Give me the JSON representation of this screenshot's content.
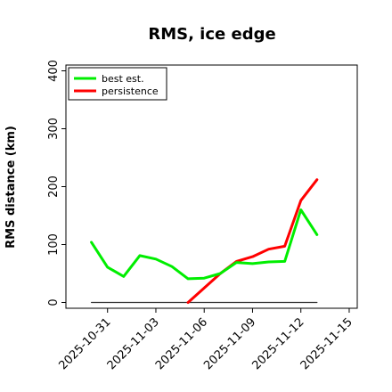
{
  "chart_data": {
    "type": "line",
    "title": "RMS, ice edge",
    "xlabel": "",
    "ylabel": "RMS distance (km)",
    "ylim": [
      -10,
      410
    ],
    "yticks": [
      0,
      100,
      200,
      300,
      400
    ],
    "xlim": [
      "2025-10-28T10:00",
      "2025-11-15T12:00"
    ],
    "xticks": [
      "2025-10-31",
      "2025-11-03",
      "2025-11-06",
      "2025-11-09",
      "2025-11-12",
      "2025-11-15"
    ],
    "grid": false,
    "legend": "top-left",
    "series": [
      {
        "name": "best est.",
        "color": "#00ee00",
        "points": [
          {
            "x": "2025-10-30",
            "y": 104
          },
          {
            "x": "2025-10-31",
            "y": 61
          },
          {
            "x": "2025-11-01",
            "y": 45
          },
          {
            "x": "2025-11-02",
            "y": 81
          },
          {
            "x": "2025-11-03",
            "y": 75
          },
          {
            "x": "2025-11-04",
            "y": 62
          },
          {
            "x": "2025-11-05",
            "y": 41
          },
          {
            "x": "2025-11-06",
            "y": 42
          },
          {
            "x": "2025-11-07",
            "y": 50
          },
          {
            "x": "2025-11-08",
            "y": 69
          },
          {
            "x": "2025-11-09",
            "y": 67
          },
          {
            "x": "2025-11-10",
            "y": 70
          },
          {
            "x": "2025-11-11",
            "y": 71
          },
          {
            "x": "2025-11-12",
            "y": 160
          },
          {
            "x": "2025-11-13",
            "y": 117
          }
        ]
      },
      {
        "name": "persistence",
        "color": "#ff0000",
        "points": [
          {
            "x": "2025-11-05",
            "y": 0
          },
          {
            "x": "2025-11-06",
            "y": 25
          },
          {
            "x": "2025-11-07",
            "y": 50
          },
          {
            "x": "2025-11-08",
            "y": 71
          },
          {
            "x": "2025-11-09",
            "y": 79
          },
          {
            "x": "2025-11-10",
            "y": 92
          },
          {
            "x": "2025-11-11",
            "y": 97
          },
          {
            "x": "2025-11-12",
            "y": 176
          },
          {
            "x": "2025-11-13",
            "y": 212
          }
        ]
      },
      {
        "color": "#333333",
        "points": [
          {
            "x": "2025-10-30",
            "y": 0
          },
          {
            "x": "2025-11-13",
            "y": 0
          }
        ]
      }
    ]
  }
}
